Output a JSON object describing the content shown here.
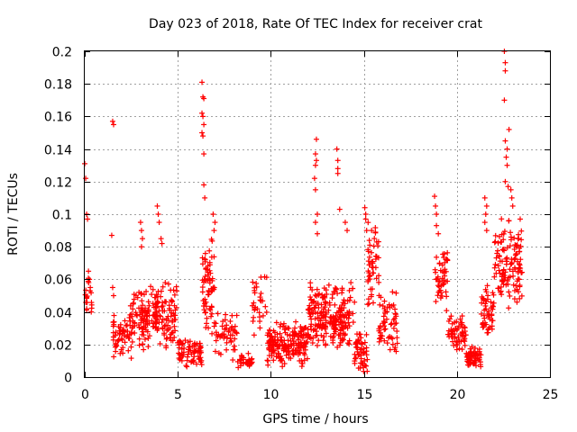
{
  "chart_data": {
    "type": "scatter",
    "title": "Day 023 of 2018, Rate Of TEC Index for receiver crat",
    "xlabel": "GPS time / hours",
    "ylabel": "ROTI / TECUs",
    "xlim": [
      0,
      25
    ],
    "ylim": [
      0,
      0.2
    ],
    "x_ticks": [
      0,
      5,
      10,
      15,
      20,
      25
    ],
    "x_tick_labels": [
      "0",
      "5",
      "10",
      "15",
      "20",
      "25"
    ],
    "y_ticks": [
      0,
      0.02,
      0.04,
      0.06,
      0.08,
      0.1,
      0.12,
      0.14,
      0.16,
      0.18,
      0.2
    ],
    "y_tick_labels": [
      "0",
      "0.02",
      "0.04",
      "0.06",
      "0.08",
      "0.1",
      "0.12",
      "0.14",
      "0.16",
      "0.18",
      "0.2"
    ],
    "grid": true,
    "marker": "+",
    "color": "#ff0000",
    "series": [
      {
        "name": "ROTI",
        "clusters": [
          {
            "t0": 0.0,
            "t1": 0.4,
            "lo": 0.035,
            "hi": 0.065,
            "n": 18
          },
          {
            "t0": 1.5,
            "t1": 2.5,
            "lo": 0.01,
            "hi": 0.045,
            "n": 60
          },
          {
            "t0": 2.5,
            "t1": 3.5,
            "lo": 0.015,
            "hi": 0.055,
            "n": 60
          },
          {
            "t0": 3.0,
            "t1": 4.0,
            "lo": 0.02,
            "hi": 0.06,
            "n": 60
          },
          {
            "t0": 3.8,
            "t1": 5.0,
            "lo": 0.015,
            "hi": 0.06,
            "n": 80
          },
          {
            "t0": 5.0,
            "t1": 6.3,
            "lo": 0.005,
            "hi": 0.025,
            "n": 70
          },
          {
            "t0": 6.3,
            "t1": 7.0,
            "lo": 0.02,
            "hi": 0.09,
            "n": 70
          },
          {
            "t0": 7.0,
            "t1": 8.2,
            "lo": 0.01,
            "hi": 0.045,
            "n": 50
          },
          {
            "t0": 8.2,
            "t1": 9.0,
            "lo": 0.005,
            "hi": 0.015,
            "n": 30
          },
          {
            "t0": 9.0,
            "t1": 9.8,
            "lo": 0.02,
            "hi": 0.065,
            "n": 30
          },
          {
            "t0": 9.8,
            "t1": 12.0,
            "lo": 0.005,
            "hi": 0.035,
            "n": 200
          },
          {
            "t0": 12.0,
            "t1": 13.0,
            "lo": 0.015,
            "hi": 0.06,
            "n": 90
          },
          {
            "t0": 12.8,
            "t1": 14.5,
            "lo": 0.015,
            "hi": 0.06,
            "n": 140
          },
          {
            "t0": 14.5,
            "t1": 15.2,
            "lo": 0.003,
            "hi": 0.03,
            "n": 50
          },
          {
            "t0": 15.2,
            "t1": 15.8,
            "lo": 0.04,
            "hi": 0.095,
            "n": 50
          },
          {
            "t0": 15.8,
            "t1": 16.8,
            "lo": 0.01,
            "hi": 0.055,
            "n": 60
          },
          {
            "t0": 18.8,
            "t1": 19.5,
            "lo": 0.035,
            "hi": 0.085,
            "n": 50
          },
          {
            "t0": 19.5,
            "t1": 20.5,
            "lo": 0.015,
            "hi": 0.04,
            "n": 60
          },
          {
            "t0": 20.5,
            "t1": 21.3,
            "lo": 0.005,
            "hi": 0.02,
            "n": 60
          },
          {
            "t0": 21.3,
            "t1": 22.0,
            "lo": 0.02,
            "hi": 0.06,
            "n": 50
          },
          {
            "t0": 22.0,
            "t1": 23.5,
            "lo": 0.04,
            "hi": 0.1,
            "n": 120
          }
        ],
        "points": [
          [
            0.0,
            0.131
          ],
          [
            0.05,
            0.122
          ],
          [
            0.1,
            0.1
          ],
          [
            0.15,
            0.097
          ],
          [
            0.2,
            0.065
          ],
          [
            0.25,
            0.06
          ],
          [
            0.3,
            0.055
          ],
          [
            0.35,
            0.04
          ],
          [
            1.5,
            0.157
          ],
          [
            1.55,
            0.155
          ],
          [
            1.45,
            0.087
          ],
          [
            1.5,
            0.055
          ],
          [
            1.55,
            0.05
          ],
          [
            3.0,
            0.095
          ],
          [
            3.05,
            0.09
          ],
          [
            3.1,
            0.085
          ],
          [
            3.05,
            0.08
          ],
          [
            3.9,
            0.105
          ],
          [
            3.95,
            0.1
          ],
          [
            4.0,
            0.095
          ],
          [
            4.1,
            0.085
          ],
          [
            4.15,
            0.082
          ],
          [
            6.3,
            0.181
          ],
          [
            6.35,
            0.172
          ],
          [
            6.4,
            0.171
          ],
          [
            6.3,
            0.162
          ],
          [
            6.35,
            0.16
          ],
          [
            6.4,
            0.155
          ],
          [
            6.3,
            0.15
          ],
          [
            6.35,
            0.148
          ],
          [
            6.4,
            0.137
          ],
          [
            6.4,
            0.118
          ],
          [
            6.45,
            0.11
          ],
          [
            6.9,
            0.1
          ],
          [
            7.0,
            0.095
          ],
          [
            6.95,
            0.09
          ],
          [
            12.45,
            0.146
          ],
          [
            12.4,
            0.137
          ],
          [
            12.45,
            0.133
          ],
          [
            12.4,
            0.13
          ],
          [
            12.35,
            0.122
          ],
          [
            12.4,
            0.115
          ],
          [
            12.5,
            0.1
          ],
          [
            12.4,
            0.095
          ],
          [
            12.5,
            0.088
          ],
          [
            13.55,
            0.14
          ],
          [
            13.6,
            0.133
          ],
          [
            13.6,
            0.128
          ],
          [
            13.6,
            0.125
          ],
          [
            13.7,
            0.103
          ],
          [
            14.0,
            0.095
          ],
          [
            14.1,
            0.09
          ],
          [
            15.05,
            0.104
          ],
          [
            15.1,
            0.1
          ],
          [
            15.1,
            0.097
          ],
          [
            15.15,
            0.09
          ],
          [
            18.8,
            0.111
          ],
          [
            18.85,
            0.105
          ],
          [
            18.9,
            0.1
          ],
          [
            18.9,
            0.093
          ],
          [
            19.0,
            0.088
          ],
          [
            21.5,
            0.11
          ],
          [
            21.6,
            0.105
          ],
          [
            21.55,
            0.1
          ],
          [
            21.5,
            0.095
          ],
          [
            21.6,
            0.09
          ],
          [
            22.55,
            0.2
          ],
          [
            22.6,
            0.193
          ],
          [
            22.6,
            0.188
          ],
          [
            22.55,
            0.17
          ],
          [
            22.8,
            0.152
          ],
          [
            22.6,
            0.145
          ],
          [
            22.7,
            0.14
          ],
          [
            22.65,
            0.135
          ],
          [
            22.7,
            0.13
          ],
          [
            22.6,
            0.12
          ],
          [
            22.75,
            0.117
          ],
          [
            22.9,
            0.115
          ],
          [
            22.95,
            0.11
          ],
          [
            23.0,
            0.105
          ],
          [
            23.4,
            0.097
          ],
          [
            23.3,
            0.065
          ],
          [
            23.35,
            0.06
          ]
        ]
      }
    ]
  }
}
